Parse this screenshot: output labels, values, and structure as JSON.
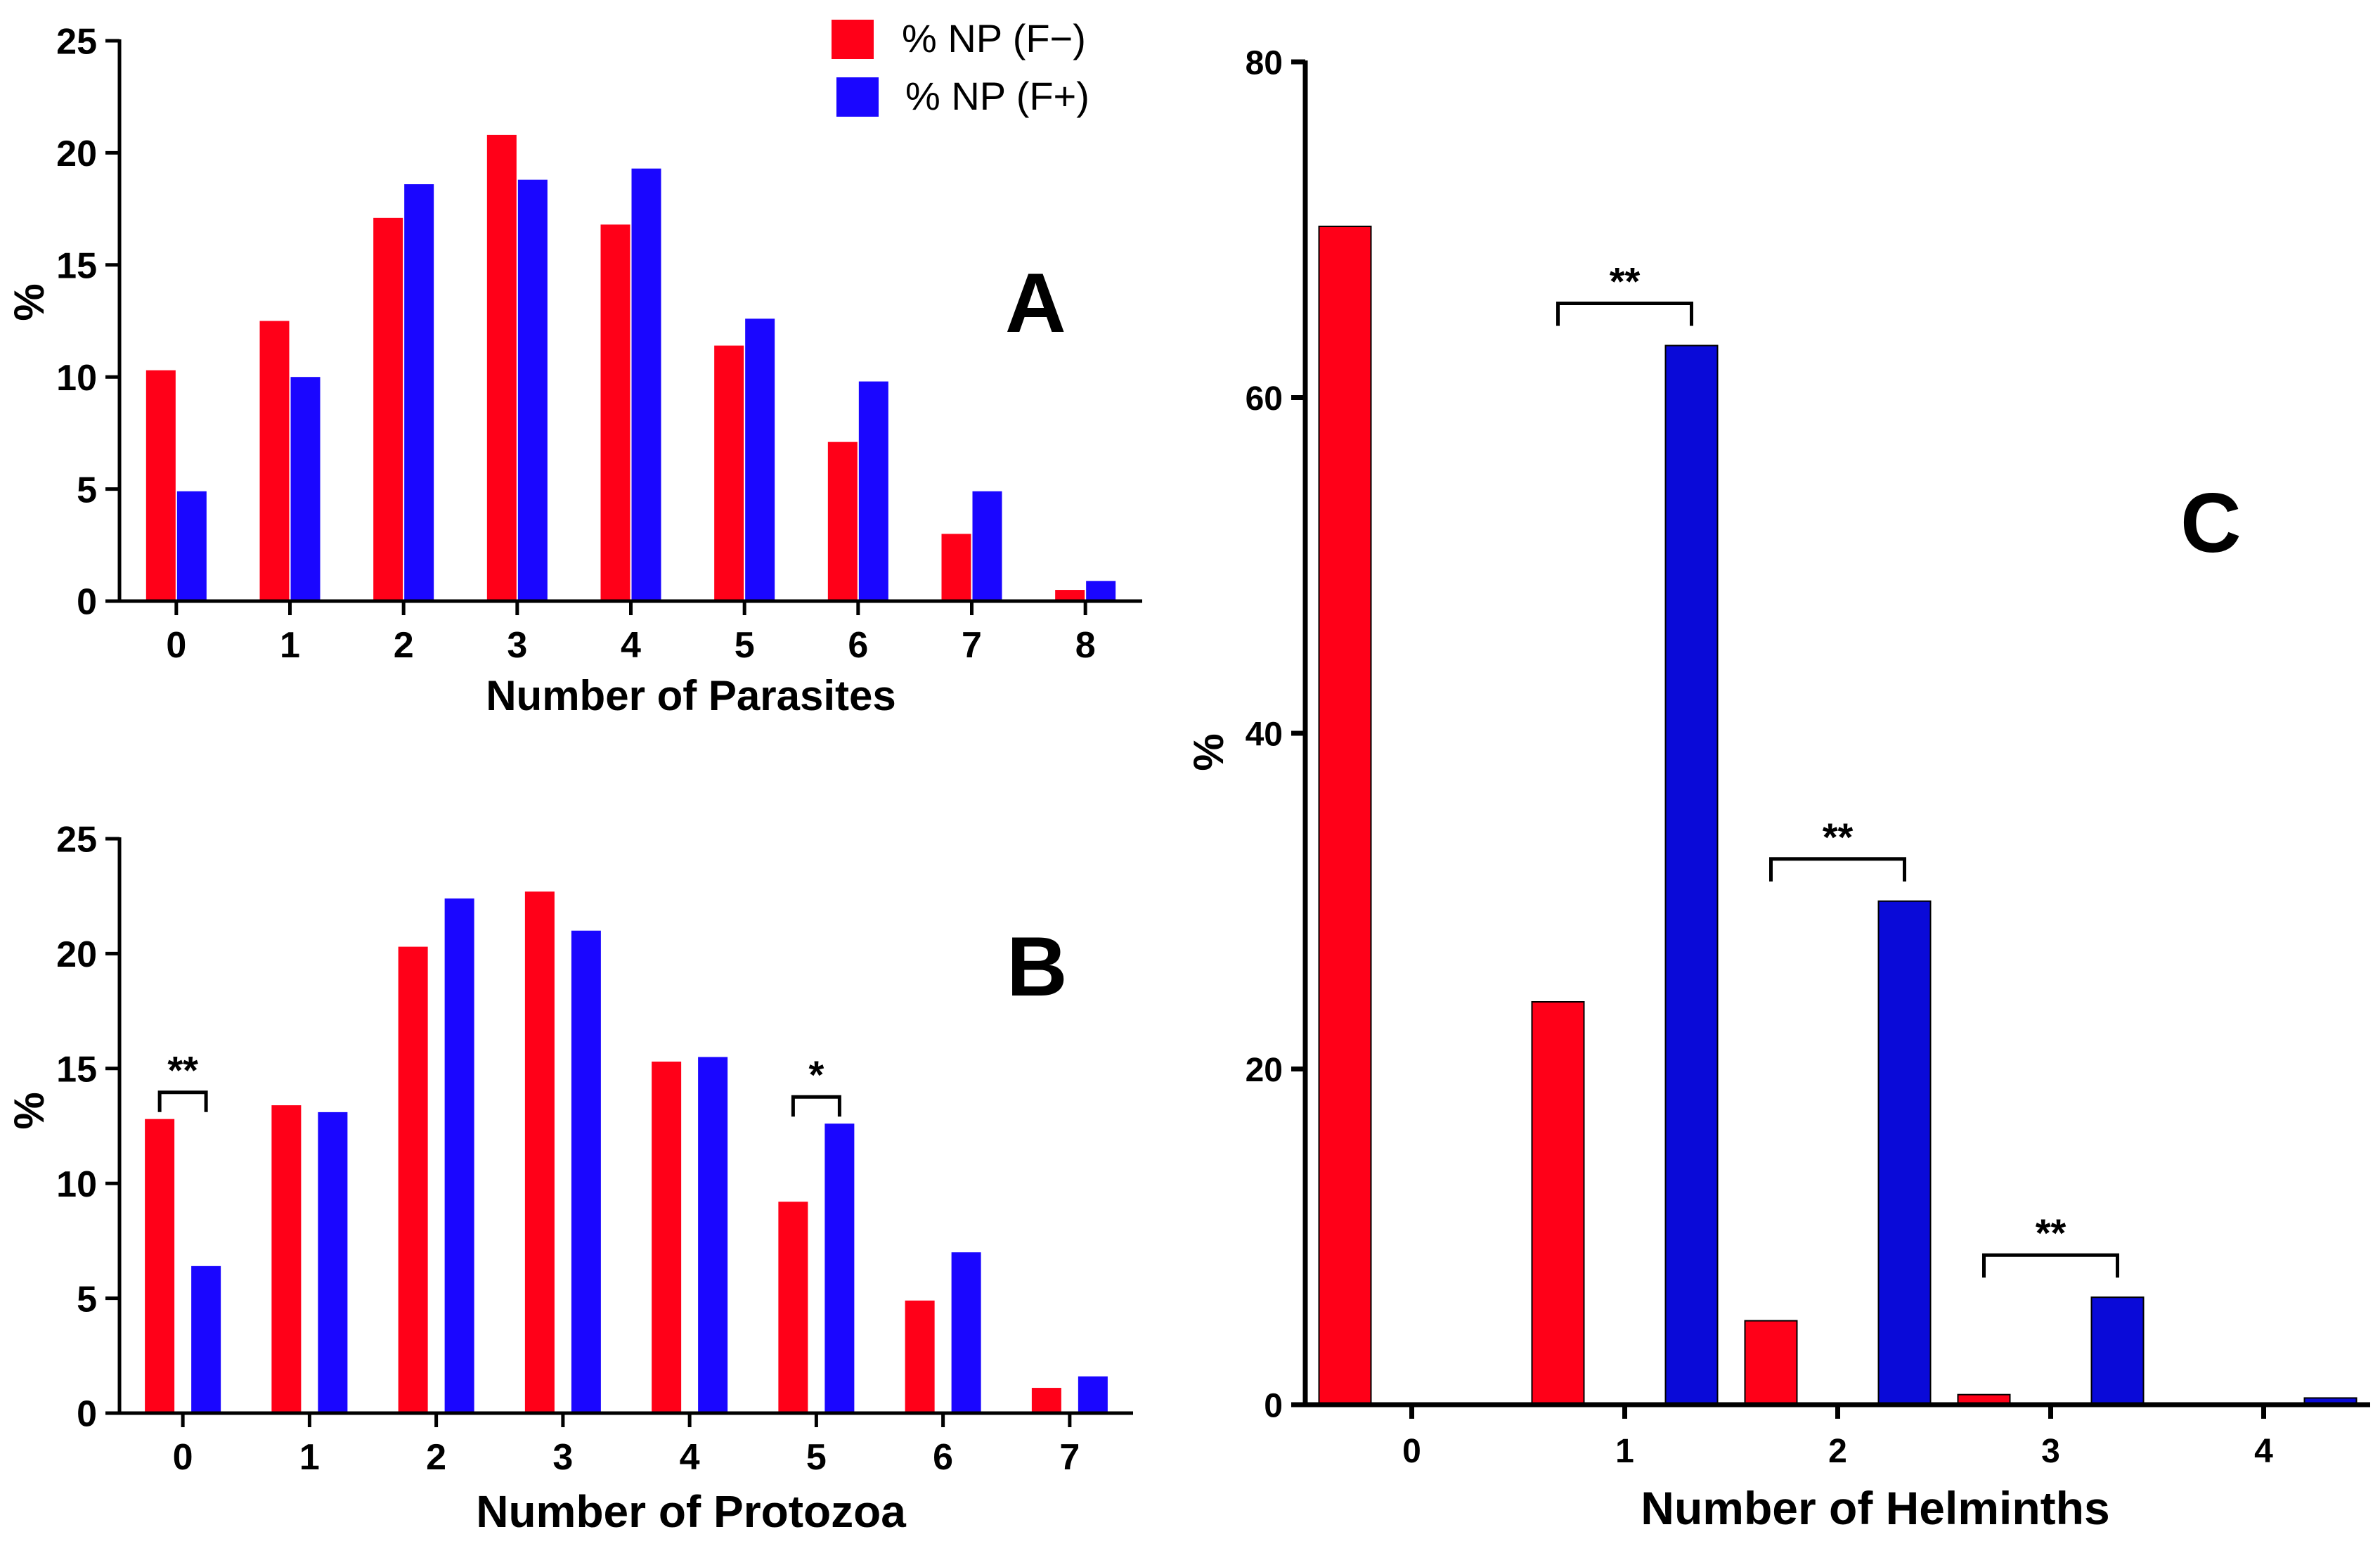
{
  "legend": [
    {
      "label": "% NP (F−)",
      "color": "#ff0018"
    },
    {
      "label": "% NP (F+)",
      "color": "#1a06ff"
    }
  ],
  "chart_data": [
    {
      "panel": "A",
      "type": "bar",
      "xlabel": "Number of Parasites",
      "ylabel": "%",
      "ylim": [
        0,
        25
      ],
      "yticks": [
        0,
        5,
        10,
        15,
        20,
        25
      ],
      "categories": [
        "0",
        "1",
        "2",
        "3",
        "4",
        "5",
        "6",
        "7",
        "8"
      ],
      "series": [
        {
          "name": "% NP (F−)",
          "color": "#ff0018",
          "values": [
            10.3,
            12.5,
            17.1,
            20.8,
            16.8,
            11.4,
            7.1,
            3.0,
            0.5
          ]
        },
        {
          "name": "% NP (F+)",
          "color": "#1a06ff",
          "values": [
            4.9,
            10.0,
            18.6,
            18.8,
            19.3,
            12.6,
            9.8,
            4.9,
            0.9
          ]
        }
      ],
      "annotations": []
    },
    {
      "panel": "B",
      "type": "bar",
      "xlabel": "Number of Protozoa",
      "ylabel": "%",
      "ylim": [
        0,
        25
      ],
      "yticks": [
        0,
        5,
        10,
        15,
        20,
        25
      ],
      "categories": [
        "0",
        "1",
        "2",
        "3",
        "4",
        "5",
        "6",
        "7"
      ],
      "series": [
        {
          "name": "% NP (F−)",
          "color": "#ff0018",
          "values": [
            12.8,
            13.4,
            20.3,
            22.7,
            15.3,
            9.2,
            4.9,
            1.1
          ]
        },
        {
          "name": "% NP (F+)",
          "color": "#1a06ff",
          "values": [
            6.4,
            13.1,
            22.4,
            21.0,
            15.5,
            12.6,
            7.0,
            1.6
          ]
        }
      ],
      "annotations": [
        {
          "category": "0",
          "text": "**"
        },
        {
          "category": "5",
          "text": "*"
        }
      ]
    },
    {
      "panel": "C",
      "type": "bar",
      "xlabel": "Number of Helminths",
      "ylabel": "%",
      "ylim": [
        0,
        80
      ],
      "yticks": [
        0,
        20,
        40,
        60,
        80
      ],
      "categories": [
        "0",
        "1",
        "2",
        "3",
        "4"
      ],
      "series": [
        {
          "name": "% NP (F−)",
          "color": "#ff0018",
          "values": [
            70.2,
            24.0,
            5.0,
            0.6,
            0.0
          ]
        },
        {
          "name": "% NP (F+)",
          "color": "#0a0ad8",
          "values": [
            0.0,
            63.1,
            30.0,
            6.4,
            0.4
          ]
        }
      ],
      "annotations": [
        {
          "category": "1",
          "text": "**"
        },
        {
          "category": "2",
          "text": "**"
        },
        {
          "category": "3",
          "text": "**"
        }
      ]
    }
  ]
}
